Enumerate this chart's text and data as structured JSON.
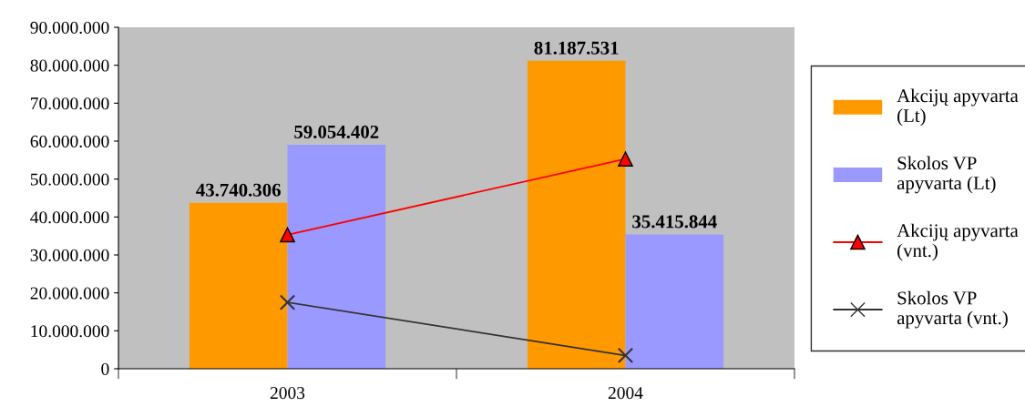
{
  "chart_data": {
    "type": "bar",
    "categories": [
      "2003",
      "2004"
    ],
    "series": [
      {
        "name": "Akcijų apyvarta (Lt)",
        "color": "#ff9900",
        "values": [
          43740306,
          81187531
        ],
        "value_labels": [
          "43.740.306",
          "81.187.531"
        ]
      },
      {
        "name": "Skolos VP apyvarta (Lt)",
        "color": "#9999ff",
        "values": [
          59054402,
          35415844
        ],
        "value_labels": [
          "59.054.402",
          "35.415.844"
        ]
      },
      {
        "name": "Akcijų apyvarta (vnt.)",
        "type": "line",
        "color": "#ff0000",
        "marker": "triangle",
        "values": [
          35300000,
          55300000
        ]
      },
      {
        "name": "Skolos VP apyvarta (vnt.)",
        "type": "line",
        "color": "#333333",
        "marker": "cross",
        "values": [
          17500000,
          3500000
        ]
      }
    ],
    "ylim": [
      0,
      90000000
    ],
    "yticks": [
      {
        "value": 0,
        "label": "0"
      },
      {
        "value": 10000000,
        "label": "10.000.000"
      },
      {
        "value": 20000000,
        "label": "20.000.000"
      },
      {
        "value": 30000000,
        "label": "30.000.000"
      },
      {
        "value": 40000000,
        "label": "40.000.000"
      },
      {
        "value": 50000000,
        "label": "50.000.000"
      },
      {
        "value": 60000000,
        "label": "60.000.000"
      },
      {
        "value": 70000000,
        "label": "70.000.000"
      },
      {
        "value": 80000000,
        "label": "80.000.000"
      },
      {
        "value": 90000000,
        "label": "90.000.000"
      }
    ],
    "grid": false,
    "legend": "right"
  }
}
